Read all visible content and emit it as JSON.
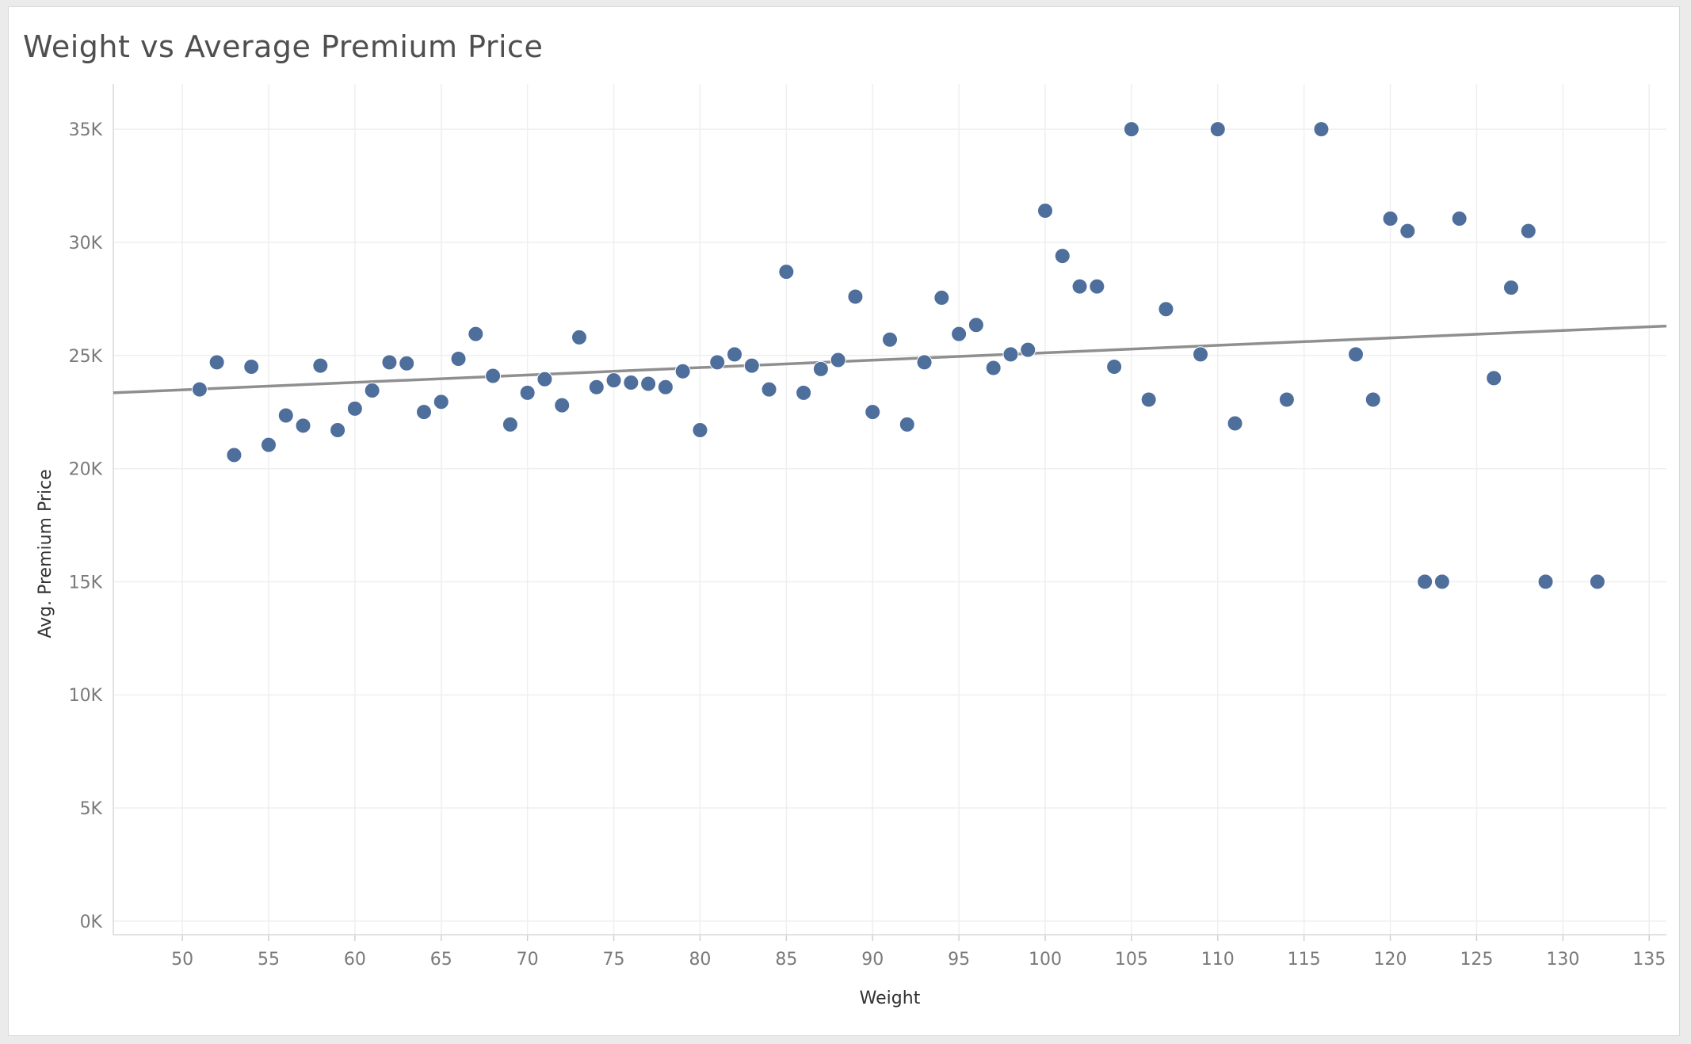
{
  "chart_data": {
    "type": "scatter",
    "title": "Weight vs Average Premium Price",
    "xlabel": "Weight",
    "ylabel": "Avg. Premium Price",
    "xlim": [
      46,
      136
    ],
    "ylim": [
      -600,
      37000
    ],
    "x_ticks": [
      50,
      55,
      60,
      65,
      70,
      75,
      80,
      85,
      90,
      95,
      100,
      105,
      110,
      115,
      120,
      125,
      130,
      135
    ],
    "y_ticks": [
      0,
      5000,
      10000,
      15000,
      20000,
      25000,
      30000,
      35000
    ],
    "y_tick_labels": [
      "0K",
      "5K",
      "10K",
      "15K",
      "20K",
      "25K",
      "30K",
      "35K"
    ],
    "grid": true,
    "trend_line": {
      "x": [
        46,
        136
      ],
      "y": [
        23350,
        26300
      ]
    },
    "series": [
      {
        "x": [
          51,
          52,
          53,
          54,
          55,
          56,
          57,
          58,
          59,
          60,
          61,
          62,
          63,
          64,
          65,
          66,
          67,
          68,
          69,
          70,
          71,
          72,
          73,
          74,
          75,
          76,
          77,
          78,
          79,
          80,
          81,
          82,
          83,
          84,
          85,
          86,
          87,
          88,
          89,
          90,
          91,
          92,
          93,
          94,
          95,
          96,
          97,
          98,
          99,
          100,
          101,
          102,
          103,
          104,
          105,
          106,
          107,
          109,
          110,
          111,
          114,
          116,
          118,
          119,
          120,
          121,
          122,
          123,
          124,
          126,
          127,
          128,
          129,
          132
        ],
        "y": [
          23500,
          24700,
          20600,
          24500,
          21050,
          22350,
          21900,
          24550,
          21700,
          22650,
          23450,
          24700,
          24650,
          22500,
          22950,
          24850,
          25950,
          24100,
          21950,
          23350,
          23950,
          22800,
          25800,
          23600,
          23900,
          23800,
          23750,
          23600,
          24300,
          21700,
          24700,
          25050,
          24550,
          23500,
          28700,
          23350,
          24400,
          24800,
          27600,
          22500,
          25700,
          21950,
          24700,
          27550,
          25950,
          26350,
          24450,
          25050,
          25250,
          31400,
          29400,
          28050,
          28050,
          24500,
          35000,
          23050,
          27050,
          25050,
          35000,
          22000,
          23050,
          35000,
          25050,
          23050,
          31050,
          30500,
          15000,
          15000,
          31050,
          24000,
          28000,
          30500,
          15000,
          15000
        ],
        "color": "#4e6e9c"
      }
    ]
  }
}
